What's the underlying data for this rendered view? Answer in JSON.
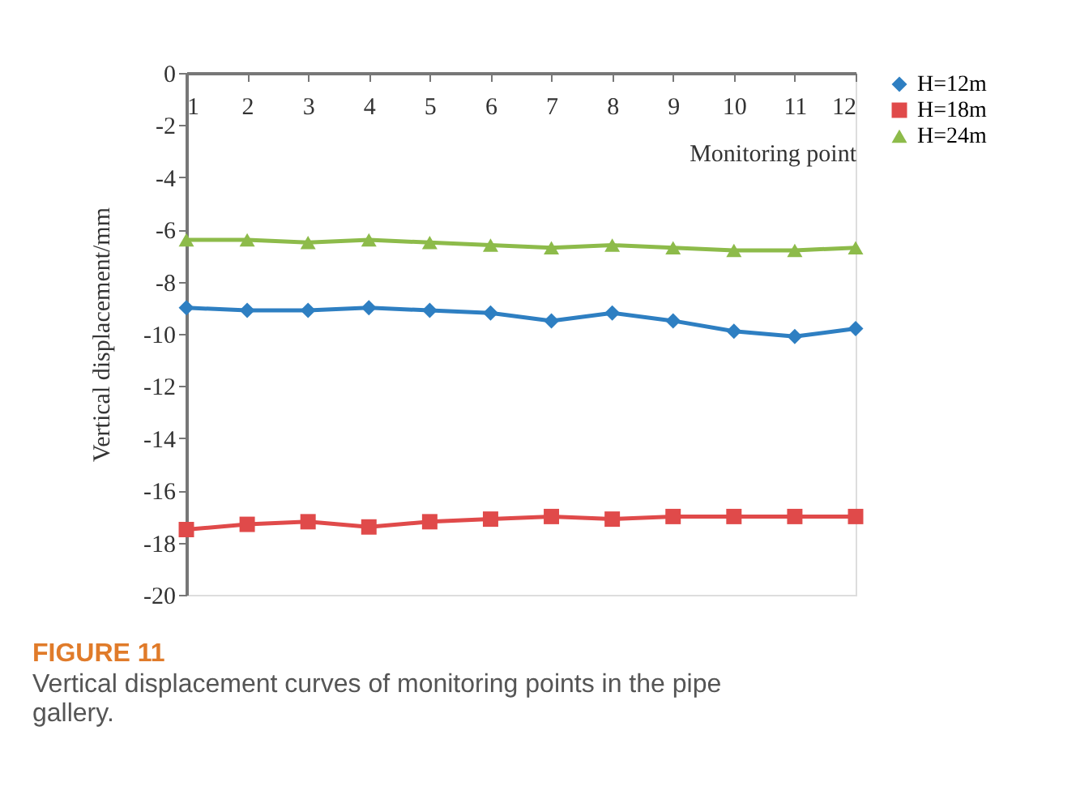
{
  "chart_data": {
    "type": "line",
    "title": "FIGURE 11",
    "annotations": [
      "Vertical displacement curves of monitoring points in the pipe gallery."
    ],
    "xlabel": "Monitoring point",
    "ylabel": "Vertical displacement/mm",
    "x": [
      1,
      2,
      3,
      4,
      5,
      6,
      7,
      8,
      9,
      10,
      11,
      12
    ],
    "xlim": [
      1,
      12
    ],
    "xticks": [
      1,
      2,
      3,
      4,
      5,
      6,
      7,
      8,
      9,
      10,
      11,
      12
    ],
    "ylim": [
      -20,
      0
    ],
    "yticks": [
      -20,
      -18,
      -16,
      -14,
      -12,
      -10,
      -8,
      -6,
      -4,
      -2,
      0
    ],
    "grid": false,
    "legend": "right",
    "line_style": "solid",
    "series": [
      {
        "name": "H=12m",
        "color": "#2e7fc2",
        "marker": "diamond",
        "values": [
          -9.0,
          -9.1,
          -9.1,
          -9.0,
          -9.1,
          -9.2,
          -9.5,
          -9.2,
          -9.5,
          -9.9,
          -10.1,
          -9.8
        ]
      },
      {
        "name": "H=18m",
        "color": "#e04a4a",
        "marker": "square",
        "values": [
          -17.5,
          -17.3,
          -17.2,
          -17.4,
          -17.2,
          -17.1,
          -17.0,
          -17.1,
          -17.0,
          -17.0,
          -17.0,
          -17.0
        ]
      },
      {
        "name": "H=24m",
        "color": "#8dbb4a",
        "marker": "triangle",
        "values": [
          -6.4,
          -6.4,
          -6.5,
          -6.4,
          -6.5,
          -6.6,
          -6.7,
          -6.6,
          -6.7,
          -6.8,
          -6.8,
          -6.7
        ]
      }
    ]
  }
}
